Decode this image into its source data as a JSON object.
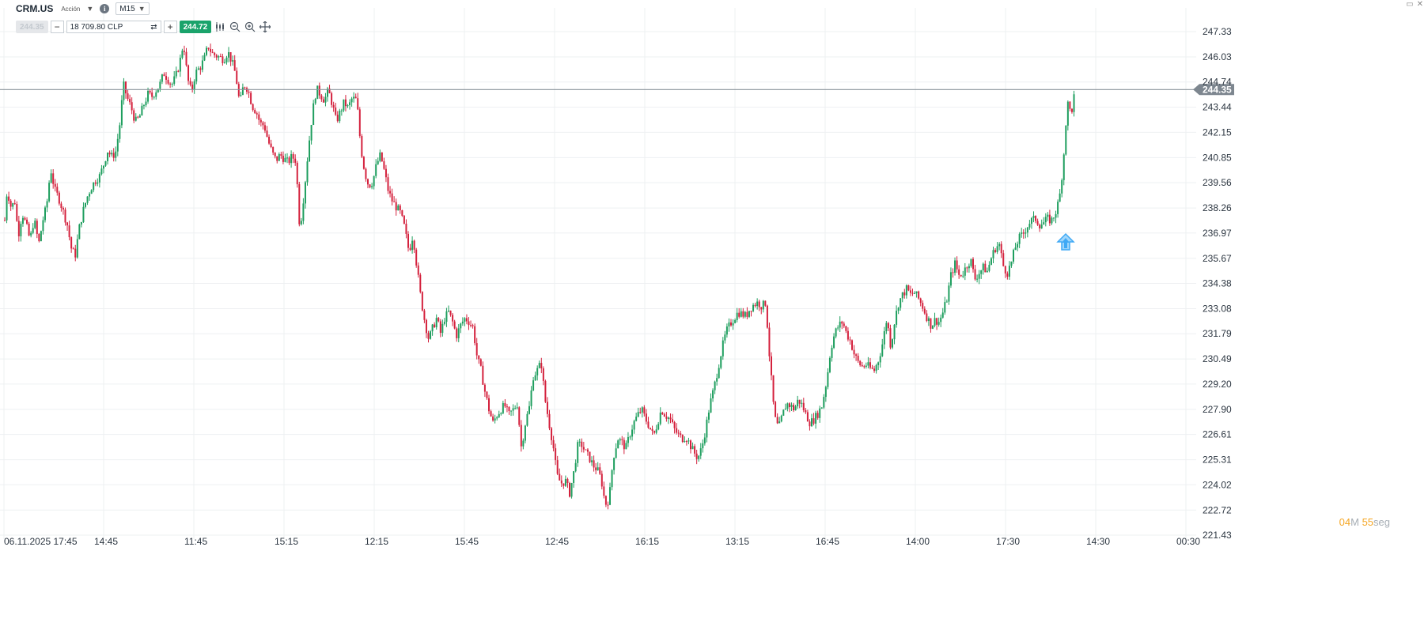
{
  "header": {
    "symbol": "CRM.US",
    "type_label": "Acción",
    "timeframe": "M15"
  },
  "trade_bar": {
    "sell_price": "244.35",
    "minus": "−",
    "amount": "18 709.80",
    "currency": "CLP",
    "plus": "+",
    "buy_price": "244.72"
  },
  "countdown": {
    "minutes": "04",
    "minutes_unit": "M",
    "seconds": "55",
    "seconds_unit": "seg"
  },
  "colors": {
    "up": "#1e9e5e",
    "down": "#d4213d",
    "grid": "#eef0f2",
    "price_line": "#8a929a",
    "arrow": "#3fa9f5"
  },
  "chart_data": {
    "type": "candlestick",
    "symbol": "CRM.US",
    "interval": "M15",
    "current_price": "244.35",
    "y_ticks": [
      "247.33",
      "246.03",
      "244.74",
      "243.44",
      "242.15",
      "240.85",
      "239.56",
      "238.26",
      "236.97",
      "235.67",
      "234.38",
      "233.08",
      "231.79",
      "230.49",
      "229.20",
      "227.90",
      "226.61",
      "225.31",
      "224.02",
      "222.72",
      "221.43"
    ],
    "x_ticks": [
      "06.11.2025 17:45",
      "14:45",
      "11:45",
      "15:15",
      "12:15",
      "15:45",
      "12:45",
      "16:15",
      "13:15",
      "16:45",
      "14:00",
      "17:30",
      "14:30",
      "00:30"
    ],
    "path": [
      [
        0,
        239.6
      ],
      [
        4,
        237.1
      ],
      [
        8,
        239.2
      ],
      [
        13,
        238.3
      ],
      [
        18,
        238.6
      ],
      [
        22,
        236.8
      ],
      [
        27,
        238.0
      ],
      [
        32,
        237.4
      ],
      [
        37,
        236.6
      ],
      [
        42,
        237.7
      ],
      [
        48,
        236.4
      ],
      [
        53,
        237.6
      ],
      [
        58,
        238.4
      ],
      [
        63,
        240.3
      ],
      [
        68,
        239.2
      ],
      [
        73,
        238.8
      ],
      [
        78,
        238.2
      ],
      [
        84,
        237.4
      ],
      [
        89,
        236.2
      ],
      [
        94,
        235.8
      ],
      [
        99,
        237.2
      ],
      [
        104,
        238.1
      ],
      [
        109,
        238.8
      ],
      [
        114,
        239.3
      ],
      [
        120,
        239.7
      ],
      [
        125,
        239.9
      ],
      [
        130,
        240.5
      ],
      [
        135,
        241.2
      ],
      [
        140,
        240.9
      ],
      [
        145,
        241.1
      ],
      [
        150,
        242.4
      ],
      [
        155,
        244.6
      ],
      [
        160,
        243.9
      ],
      [
        165,
        243.4
      ],
      [
        170,
        242.7
      ],
      [
        175,
        242.9
      ],
      [
        180,
        243.5
      ],
      [
        186,
        244.1
      ],
      [
        191,
        244.0
      ],
      [
        196,
        244.3
      ],
      [
        201,
        244.6
      ],
      [
        206,
        245.2
      ],
      [
        211,
        244.9
      ],
      [
        216,
        244.6
      ],
      [
        221,
        245.0
      ],
      [
        226,
        245.7
      ],
      [
        231,
        246.8
      ],
      [
        236,
        244.9
      ],
      [
        241,
        244.2
      ],
      [
        246,
        245.2
      ],
      [
        252,
        245.5
      ],
      [
        257,
        245.9
      ],
      [
        262,
        246.6
      ],
      [
        267,
        246.2
      ],
      [
        272,
        246.1
      ],
      [
        277,
        246.0
      ],
      [
        282,
        245.9
      ],
      [
        287,
        246.3
      ],
      [
        292,
        245.8
      ],
      [
        297,
        245.1
      ],
      [
        302,
        243.6
      ],
      [
        307,
        244.6
      ],
      [
        312,
        244.4
      ],
      [
        318,
        243.5
      ],
      [
        323,
        243.2
      ],
      [
        328,
        242.6
      ],
      [
        333,
        242.5
      ],
      [
        338,
        241.7
      ],
      [
        343,
        241.1
      ],
      [
        348,
        240.7
      ],
      [
        353,
        241.0
      ],
      [
        358,
        240.8
      ],
      [
        363,
        240.6
      ],
      [
        368,
        240.9
      ],
      [
        373,
        240.7
      ],
      [
        378,
        237.1
      ],
      [
        384,
        239.3
      ],
      [
        389,
        241.4
      ],
      [
        394,
        243.2
      ],
      [
        399,
        244.4
      ],
      [
        404,
        244.1
      ],
      [
        409,
        243.8
      ],
      [
        414,
        244.3
      ],
      [
        419,
        243.6
      ],
      [
        424,
        242.7
      ],
      [
        429,
        243.2
      ],
      [
        434,
        243.7
      ],
      [
        439,
        243.4
      ],
      [
        444,
        243.9
      ],
      [
        450,
        243.8
      ],
      [
        455,
        241.4
      ],
      [
        460,
        240.1
      ],
      [
        465,
        239.4
      ],
      [
        470,
        239.6
      ],
      [
        475,
        240.5
      ],
      [
        480,
        241.0
      ],
      [
        485,
        240.1
      ],
      [
        490,
        239.1
      ],
      [
        495,
        238.6
      ],
      [
        500,
        238.3
      ],
      [
        505,
        238.0
      ],
      [
        510,
        237.3
      ],
      [
        516,
        236.0
      ],
      [
        521,
        236.9
      ],
      [
        526,
        235.2
      ],
      [
        531,
        233.6
      ],
      [
        536,
        232.4
      ],
      [
        541,
        231.5
      ],
      [
        546,
        232.1
      ],
      [
        551,
        232.6
      ],
      [
        556,
        231.8
      ],
      [
        561,
        232.6
      ],
      [
        566,
        232.9
      ],
      [
        571,
        232.4
      ],
      [
        576,
        231.7
      ],
      [
        582,
        232.3
      ],
      [
        587,
        232.6
      ],
      [
        592,
        232.4
      ],
      [
        597,
        232.1
      ],
      [
        602,
        230.6
      ],
      [
        607,
        229.9
      ],
      [
        612,
        228.8
      ],
      [
        617,
        227.9
      ],
      [
        622,
        227.2
      ],
      [
        627,
        227.6
      ],
      [
        632,
        227.9
      ],
      [
        637,
        228.1
      ],
      [
        642,
        227.6
      ],
      [
        648,
        227.9
      ],
      [
        653,
        228.2
      ],
      [
        658,
        225.9
      ],
      [
        663,
        227.2
      ],
      [
        668,
        228.0
      ],
      [
        673,
        229.6
      ],
      [
        678,
        229.9
      ],
      [
        683,
        230.3
      ],
      [
        688,
        228.4
      ],
      [
        693,
        227.2
      ],
      [
        698,
        226.1
      ],
      [
        703,
        224.5
      ],
      [
        708,
        224.1
      ],
      [
        714,
        224.2
      ],
      [
        719,
        223.6
      ],
      [
        724,
        224.6
      ],
      [
        729,
        226.0
      ],
      [
        734,
        226.1
      ],
      [
        739,
        225.7
      ],
      [
        744,
        225.4
      ],
      [
        749,
        225.0
      ],
      [
        754,
        224.8
      ],
      [
        759,
        224.3
      ],
      [
        764,
        223.0
      ],
      [
        769,
        223.3
      ],
      [
        774,
        225.4
      ],
      [
        780,
        226.4
      ],
      [
        785,
        226.2
      ],
      [
        790,
        225.9
      ],
      [
        795,
        226.6
      ],
      [
        800,
        227.2
      ],
      [
        805,
        227.6
      ],
      [
        810,
        227.9
      ],
      [
        815,
        227.4
      ],
      [
        820,
        227.0
      ],
      [
        825,
        226.5
      ],
      [
        830,
        227.2
      ],
      [
        835,
        227.9
      ],
      [
        840,
        227.6
      ],
      [
        846,
        227.4
      ],
      [
        851,
        226.9
      ],
      [
        856,
        226.6
      ],
      [
        861,
        226.4
      ],
      [
        866,
        226.5
      ],
      [
        871,
        226.1
      ],
      [
        876,
        225.7
      ],
      [
        881,
        225.4
      ],
      [
        886,
        225.9
      ],
      [
        891,
        226.9
      ],
      [
        896,
        228.1
      ],
      [
        901,
        228.9
      ],
      [
        906,
        229.9
      ],
      [
        912,
        231.1
      ],
      [
        917,
        231.9
      ],
      [
        922,
        232.3
      ],
      [
        927,
        232.6
      ],
      [
        932,
        232.9
      ],
      [
        937,
        232.8
      ],
      [
        942,
        232.7
      ],
      [
        947,
        233.1
      ],
      [
        952,
        233.3
      ],
      [
        957,
        233.4
      ],
      [
        962,
        233.2
      ],
      [
        967,
        233.4
      ],
      [
        972,
        230.4
      ],
      [
        978,
        227.5
      ],
      [
        983,
        226.9
      ],
      [
        988,
        227.6
      ],
      [
        993,
        228.2
      ],
      [
        998,
        228.1
      ],
      [
        1003,
        227.9
      ],
      [
        1008,
        228.4
      ],
      [
        1013,
        228.1
      ],
      [
        1018,
        227.6
      ],
      [
        1023,
        227.2
      ],
      [
        1028,
        227.4
      ],
      [
        1033,
        227.7
      ],
      [
        1038,
        228.1
      ],
      [
        1044,
        229.4
      ],
      [
        1049,
        231.0
      ],
      [
        1054,
        231.8
      ],
      [
        1059,
        232.2
      ],
      [
        1064,
        232.4
      ],
      [
        1069,
        231.8
      ],
      [
        1074,
        231.4
      ],
      [
        1079,
        230.7
      ],
      [
        1084,
        230.3
      ],
      [
        1089,
        230.1
      ],
      [
        1094,
        230.2
      ],
      [
        1099,
        230.0
      ],
      [
        1104,
        229.9
      ],
      [
        1110,
        230.5
      ],
      [
        1115,
        231.4
      ],
      [
        1120,
        232.6
      ],
      [
        1125,
        231.1
      ],
      [
        1130,
        232.5
      ],
      [
        1135,
        233.4
      ],
      [
        1140,
        233.8
      ],
      [
        1145,
        234.1
      ],
      [
        1150,
        233.8
      ],
      [
        1155,
        233.9
      ],
      [
        1160,
        233.6
      ],
      [
        1165,
        233.2
      ],
      [
        1170,
        232.7
      ],
      [
        1176,
        232.2
      ],
      [
        1181,
        232.5
      ],
      [
        1186,
        232.4
      ],
      [
        1191,
        232.9
      ],
      [
        1196,
        233.6
      ],
      [
        1201,
        234.8
      ],
      [
        1206,
        235.4
      ],
      [
        1211,
        234.8
      ],
      [
        1216,
        234.9
      ],
      [
        1221,
        235.3
      ],
      [
        1226,
        235.6
      ],
      [
        1231,
        234.6
      ],
      [
        1236,
        234.9
      ],
      [
        1242,
        235.2
      ],
      [
        1247,
        235.0
      ],
      [
        1252,
        235.7
      ],
      [
        1257,
        236.2
      ],
      [
        1262,
        236.4
      ],
      [
        1267,
        235.3
      ],
      [
        1272,
        234.9
      ],
      [
        1277,
        235.4
      ],
      [
        1282,
        236.2
      ],
      [
        1287,
        236.7
      ],
      [
        1292,
        236.9
      ],
      [
        1297,
        237.3
      ],
      [
        1302,
        237.6
      ],
      [
        1308,
        237.7
      ],
      [
        1313,
        237.4
      ],
      [
        1318,
        237.5
      ],
      [
        1323,
        237.7
      ],
      [
        1328,
        237.6
      ],
      [
        1333,
        238.0
      ],
      [
        1338,
        238.7
      ],
      [
        1343,
        240.6
      ],
      [
        1348,
        243.7
      ],
      [
        1353,
        243.1
      ],
      [
        1358,
        244.35
      ]
    ]
  }
}
